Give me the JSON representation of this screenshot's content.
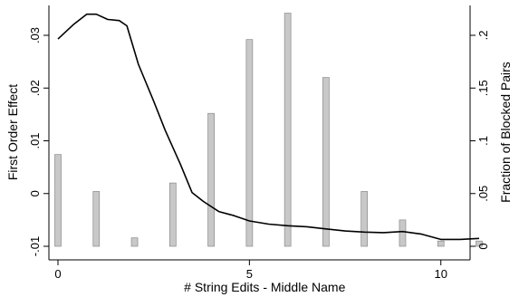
{
  "chart_data": {
    "type": "bar+line",
    "xlabel": "# String Edits - Middle Name",
    "ylabel_left": "First Order Effect",
    "ylabel_right": "Fraction of Blocked Pairs",
    "xlim": [
      0,
      11
    ],
    "ylim_left": [
      -0.01,
      0.034
    ],
    "ylim_right": [
      0,
      0.22
    ],
    "x_ticks": [
      0,
      5,
      10
    ],
    "x_tick_labels": [
      "0",
      "5",
      "10"
    ],
    "y_left_ticks": [
      -0.01,
      0,
      0.01,
      0.02,
      0.03
    ],
    "y_left_tick_labels": [
      "-.01",
      "0",
      ".01",
      ".02",
      ".03"
    ],
    "y_right_ticks": [
      0,
      0.05,
      0.1,
      0.15,
      0.2
    ],
    "y_right_tick_labels": [
      "0",
      ".05",
      ".1",
      ".15",
      ".2"
    ],
    "grid": false,
    "colors": {
      "bars": "#c8c8c8",
      "bar_edge": "#8a8a8a",
      "line": "#000000",
      "axes": "#000000"
    },
    "bars": {
      "axis": "right",
      "x": [
        0,
        1,
        2,
        3,
        4,
        5,
        6,
        7,
        8,
        9,
        10,
        11
      ],
      "values": [
        0.087,
        0.052,
        0.008,
        0.06,
        0.126,
        0.196,
        0.221,
        0.16,
        0.052,
        0.025,
        0.005,
        0.005
      ]
    },
    "line": {
      "axis": "left",
      "x": [
        0,
        0.4,
        0.75,
        1.0,
        1.3,
        1.6,
        1.8,
        2.1,
        2.5,
        2.8,
        3.2,
        3.5,
        3.8,
        4.2,
        4.6,
        5.0,
        5.5,
        6.0,
        6.5,
        7.0,
        7.5,
        8.0,
        8.5,
        9.0,
        9.5,
        10.0,
        10.5,
        11.0
      ],
      "y": [
        0.0293,
        0.032,
        0.034,
        0.034,
        0.033,
        0.0328,
        0.0318,
        0.0245,
        0.0175,
        0.012,
        0.0055,
        0.0002,
        -0.0015,
        -0.0034,
        -0.0042,
        -0.0052,
        -0.0058,
        -0.0061,
        -0.0063,
        -0.0067,
        -0.0071,
        -0.0073,
        -0.0074,
        -0.0072,
        -0.0077,
        -0.0087,
        -0.0087,
        -0.0085
      ]
    }
  }
}
